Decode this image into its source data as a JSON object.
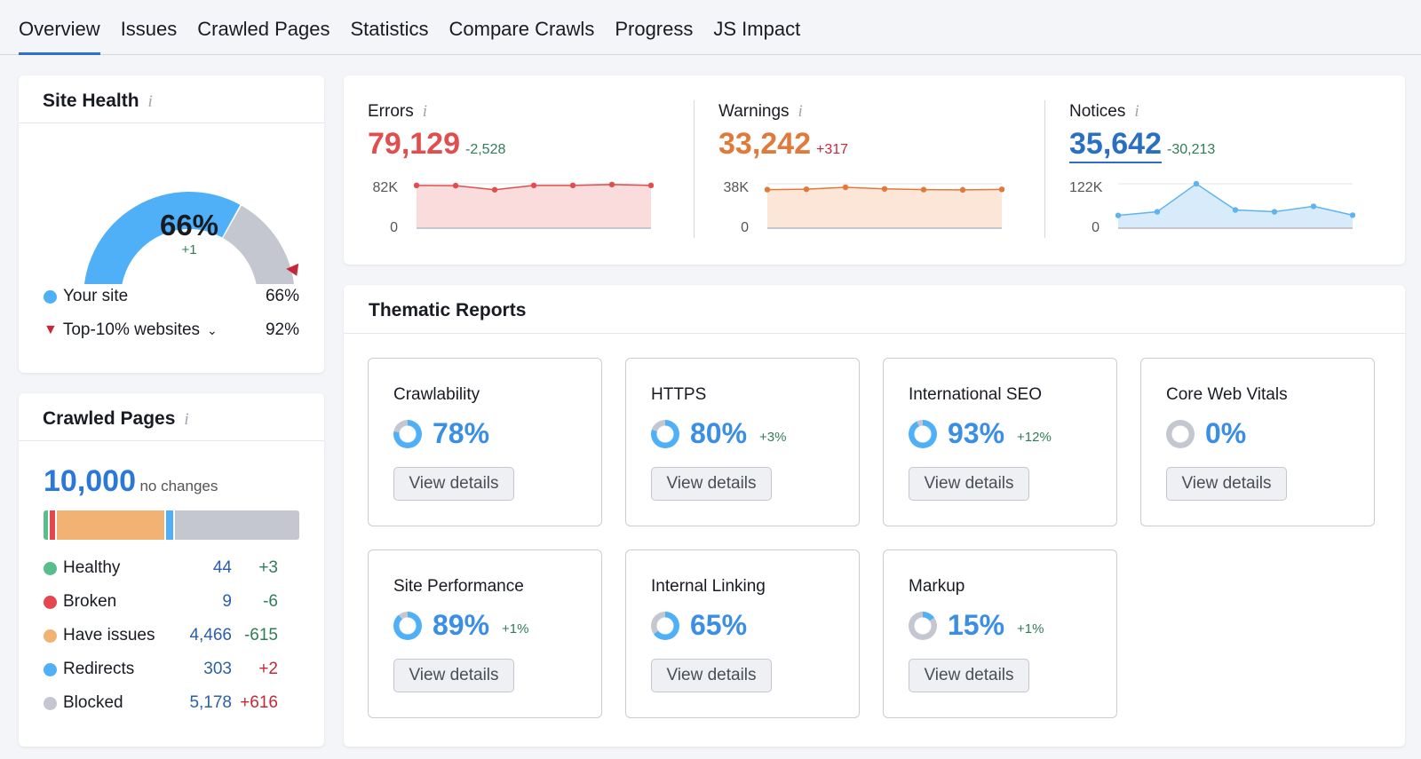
{
  "tabs": [
    "Overview",
    "Issues",
    "Crawled Pages",
    "Statistics",
    "Compare Crawls",
    "Progress",
    "JS Impact"
  ],
  "site_health": {
    "title": "Site Health",
    "value": "66%",
    "delta": "+1",
    "value_fraction": 0.66,
    "top10_fraction": 0.92,
    "legend": [
      {
        "label": "Your site",
        "value": "66%",
        "color": "#4fb0f7"
      },
      {
        "label": "Top-10% websites",
        "value": "92%",
        "color": "#c6283a"
      }
    ]
  },
  "crawled_pages": {
    "title": "Crawled Pages",
    "total": "10,000",
    "note": "no changes",
    "rows": [
      {
        "label": "Healthy",
        "value": "44",
        "delta": "+3",
        "color": "#59be8c",
        "delta_color": "#2f7c5a",
        "count": 44
      },
      {
        "label": "Broken",
        "value": "9",
        "delta": "-6",
        "color": "#e5474f",
        "delta_color": "#2f7c5a",
        "count": 9
      },
      {
        "label": "Have issues",
        "value": "4,466",
        "delta": "-615",
        "color": "#f2b273",
        "delta_color": "#2f7c5a",
        "count": 4466
      },
      {
        "label": "Redirects",
        "value": "303",
        "delta": "+2",
        "color": "#4fb0f7",
        "delta_color": "#c6283a",
        "count": 303
      },
      {
        "label": "Blocked",
        "value": "5,178",
        "delta": "+616",
        "color": "#c4c7cf",
        "delta_color": "#c6283a",
        "count": 5178
      }
    ]
  },
  "metrics": [
    {
      "label": "Errors",
      "value": "79,129",
      "delta": "-2,528",
      "color": "#e04e4e",
      "delta_color": "#2f7c5a",
      "fill": "#fbdcdc",
      "ymax_label": "82K",
      "ymin_label": "0",
      "ymax": 82000,
      "points": [
        79000,
        78500,
        71000,
        79000,
        79000,
        80500,
        79000
      ]
    },
    {
      "label": "Warnings",
      "value": "33,242",
      "delta": "+317",
      "color": "#e0793a",
      "delta_color": "#c6283a",
      "fill": "#fce6d7",
      "ymax_label": "38K",
      "ymin_label": "0",
      "ymax": 38000,
      "points": [
        33000,
        33300,
        35000,
        33600,
        33000,
        32800,
        33200
      ]
    },
    {
      "label": "Notices",
      "value": "35,642",
      "delta": "-30,213",
      "color": "#2b6fc2",
      "delta_color": "#2f7c5a",
      "fill": "#d8ebfa",
      "line": "#5fb3ee",
      "ymax_label": "122K",
      "ymin_label": "0",
      "ymax": 122000,
      "points": [
        35000,
        45000,
        122000,
        50000,
        45000,
        60000,
        35600
      ]
    }
  ],
  "thematic": {
    "title": "Thematic Reports",
    "button": "View details",
    "items": [
      {
        "name": "Crawlability",
        "value": "78%",
        "delta": "",
        "fraction": 0.78
      },
      {
        "name": "HTTPS",
        "value": "80%",
        "delta": "+3%",
        "fraction": 0.8
      },
      {
        "name": "International SEO",
        "value": "93%",
        "delta": "+12%",
        "fraction": 0.93
      },
      {
        "name": "Core Web Vitals",
        "value": "0%",
        "delta": "",
        "fraction": 0
      },
      {
        "name": "Site Performance",
        "value": "89%",
        "delta": "+1%",
        "fraction": 0.89
      },
      {
        "name": "Internal Linking",
        "value": "65%",
        "delta": "",
        "fraction": 0.65
      },
      {
        "name": "Markup",
        "value": "15%",
        "delta": "+1%",
        "fraction": 0.15
      }
    ]
  }
}
